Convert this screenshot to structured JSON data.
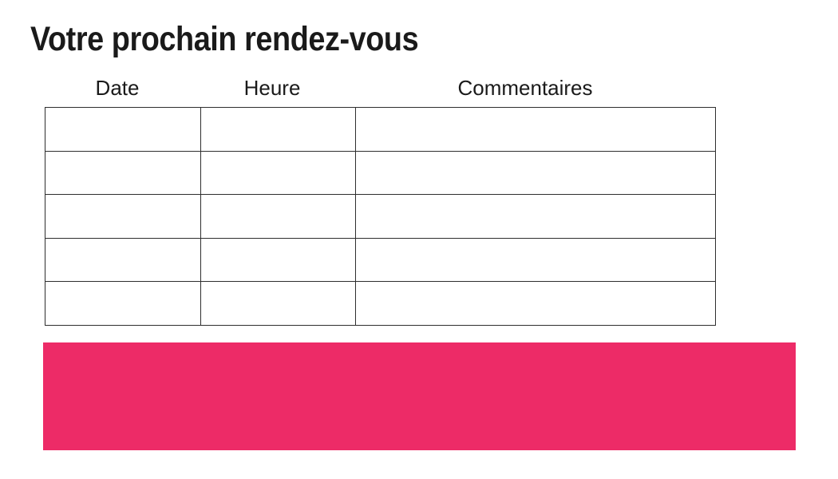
{
  "title": {
    "text": "Votre prochain rendez-vous"
  },
  "table": {
    "headers": [
      {
        "label": "Date"
      },
      {
        "label": "Heure"
      },
      {
        "label": "Commentaires"
      }
    ],
    "rows": [
      [
        "",
        "",
        ""
      ],
      [
        "",
        "",
        ""
      ],
      [
        "",
        "",
        ""
      ],
      [
        "",
        "",
        ""
      ],
      [
        "",
        "",
        ""
      ]
    ]
  },
  "colors": {
    "banner_pink": "#ed2b67",
    "text": "#1a1a1a",
    "table_border": "#2e2e2e",
    "background": "#ffffff"
  }
}
